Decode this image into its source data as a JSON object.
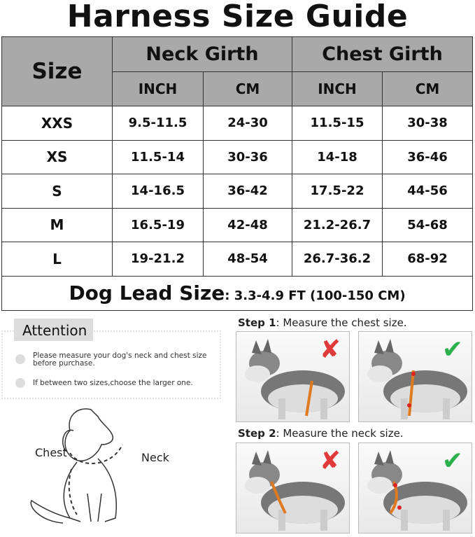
{
  "title": "Harness Size Guide",
  "table": {
    "size_header": "Size",
    "groups": [
      "Neck Girth",
      "Chest Girth"
    ],
    "units": [
      "INCH",
      "CM",
      "INCH",
      "CM"
    ],
    "rows": [
      [
        "XXS",
        "9.5-11.5",
        "24-30",
        "11.5-15",
        "30-38"
      ],
      [
        "XS",
        "11.5-14",
        "30-36",
        "14-18",
        "36-46"
      ],
      [
        "S",
        "14-16.5",
        "36-42",
        "17.5-22",
        "44-56"
      ],
      [
        "M",
        "16.5-19",
        "42-48",
        "21.2-26.7",
        "54-68"
      ],
      [
        "L",
        "19-21.2",
        "48-54",
        "26.7-36.2",
        "68-92"
      ]
    ],
    "lead_label": "Dog Lead Size",
    "lead_value": ": 3.3-4.9 FT (100-150 CM)"
  },
  "attention": {
    "title": "Attention",
    "items": [
      "Please measure your dog's neck and chest size before purchase.",
      "If between two sizes,choose the larger one."
    ]
  },
  "diagram": {
    "chest": "Chest",
    "neck": "Neck"
  },
  "steps": [
    {
      "label": "Step 1",
      "text": ": Measure the chest size."
    },
    {
      "label": "Step 2",
      "text": ": Measure the neck size."
    }
  ],
  "colors": {
    "header_gray": "#a9a9a9",
    "wrong": "#e03a3a",
    "right": "#2bb24c",
    "strap": "#e07a20"
  }
}
